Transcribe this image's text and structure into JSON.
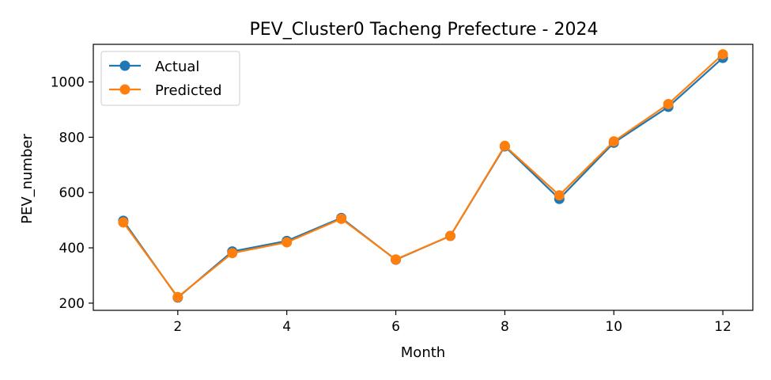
{
  "chart_data": {
    "type": "line",
    "title": "PEV_Cluster0 Tacheng Prefecture - 2024",
    "xlabel": "Month",
    "ylabel": "PEV_number",
    "xlim": [
      0.45,
      12.55
    ],
    "ylim": [
      174,
      1136
    ],
    "xticks": [
      2,
      4,
      6,
      8,
      10,
      12
    ],
    "yticks": [
      200,
      400,
      600,
      800,
      1000
    ],
    "grid": false,
    "legend_position": "top-left",
    "x": [
      1,
      2,
      3,
      4,
      5,
      6,
      7,
      8,
      9,
      10,
      11,
      12
    ],
    "series": [
      {
        "name": "Actual",
        "color": "#1f77b4",
        "values": [
          498,
          220,
          387,
          425,
          508,
          357,
          443,
          767,
          577,
          780,
          910,
          1087
        ]
      },
      {
        "name": "Predicted",
        "color": "#ff7f0e",
        "values": [
          492,
          222,
          381,
          420,
          505,
          358,
          443,
          769,
          590,
          785,
          920,
          1100
        ]
      }
    ]
  }
}
